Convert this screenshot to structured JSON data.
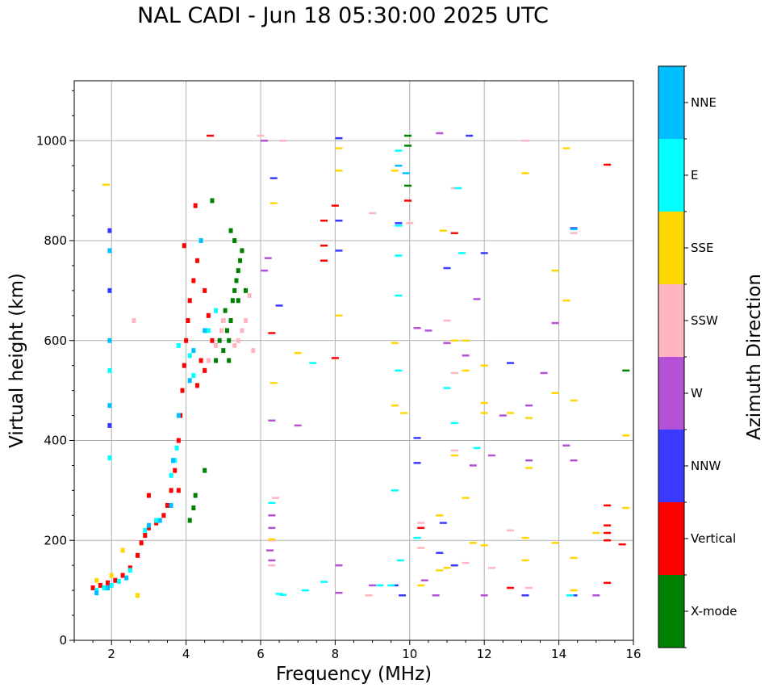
{
  "chart_data": {
    "type": "scatter",
    "title": "NAL CADI - Jun 18 05:30:00 2025 UTC",
    "xlabel": "Frequency (MHz)",
    "ylabel": "Virtual height (km)",
    "xlim": [
      1,
      16
    ],
    "ylim": [
      0,
      1120
    ],
    "xticks": [
      2,
      4,
      6,
      8,
      10,
      12,
      14,
      16
    ],
    "yticks": [
      0,
      200,
      400,
      600,
      800,
      1000
    ],
    "grid": true,
    "colorbar": {
      "label": "Azimuth Direction",
      "categories": [
        "X-mode",
        "Vertical",
        "NNW",
        "W",
        "SSW",
        "SSE",
        "E",
        "NNE"
      ],
      "colors": [
        "#008000",
        "#ff0000",
        "#3a3aff",
        "#b452d6",
        "#ffb6c1",
        "#ffd700",
        "#00ffff",
        "#00bfff"
      ]
    },
    "series": [
      {
        "name": "X-mode",
        "points": [
          [
            4.1,
            240
          ],
          [
            4.2,
            265
          ],
          [
            4.25,
            290
          ],
          [
            4.5,
            340
          ],
          [
            4.8,
            560
          ],
          [
            4.9,
            600
          ],
          [
            5.0,
            640
          ],
          [
            5.05,
            660
          ],
          [
            5.1,
            620
          ],
          [
            5.15,
            600
          ],
          [
            5.2,
            640
          ],
          [
            5.25,
            680
          ],
          [
            5.3,
            700
          ],
          [
            5.35,
            720
          ],
          [
            5.4,
            740
          ],
          [
            5.45,
            760
          ],
          [
            5.5,
            780
          ],
          [
            5.3,
            800
          ],
          [
            5.2,
            820
          ],
          [
            4.7,
            880
          ],
          [
            5.6,
            700
          ],
          [
            5.0,
            580
          ],
          [
            5.15,
            560
          ],
          [
            5.4,
            680
          ],
          [
            15.8,
            540
          ],
          [
            9.95,
            1010
          ],
          [
            9.95,
            990
          ],
          [
            9.95,
            910
          ]
        ]
      },
      {
        "name": "Vertical",
        "points": [
          [
            1.5,
            105
          ],
          [
            1.7,
            110
          ],
          [
            1.9,
            115
          ],
          [
            2.1,
            120
          ],
          [
            2.3,
            130
          ],
          [
            2.5,
            145
          ],
          [
            2.7,
            170
          ],
          [
            2.8,
            195
          ],
          [
            2.9,
            210
          ],
          [
            3.0,
            225
          ],
          [
            3.2,
            235
          ],
          [
            3.4,
            250
          ],
          [
            3.5,
            270
          ],
          [
            3.6,
            300
          ],
          [
            3.7,
            340
          ],
          [
            3.8,
            400
          ],
          [
            3.85,
            450
          ],
          [
            3.9,
            500
          ],
          [
            3.95,
            550
          ],
          [
            4.0,
            600
          ],
          [
            4.05,
            640
          ],
          [
            4.1,
            680
          ],
          [
            4.2,
            720
          ],
          [
            4.3,
            760
          ],
          [
            4.5,
            700
          ],
          [
            4.6,
            650
          ],
          [
            4.7,
            600
          ],
          [
            4.5,
            540
          ],
          [
            4.3,
            510
          ],
          [
            3.95,
            790
          ],
          [
            4.25,
            870
          ],
          [
            4.65,
            1010
          ],
          [
            4.4,
            560
          ],
          [
            7.7,
            790
          ],
          [
            7.7,
            760
          ],
          [
            7.7,
            840
          ],
          [
            8.0,
            870
          ],
          [
            6.3,
            615
          ],
          [
            8.0,
            565
          ],
          [
            15.3,
            270
          ],
          [
            15.3,
            230
          ],
          [
            15.3,
            215
          ],
          [
            15.3,
            200
          ],
          [
            15.7,
            192
          ],
          [
            15.3,
            115
          ],
          [
            15.3,
            952
          ],
          [
            12.7,
            105
          ],
          [
            3.0,
            290
          ],
          [
            3.8,
            300
          ],
          [
            11.2,
            815
          ],
          [
            10.3,
            225
          ],
          [
            9.95,
            880
          ]
        ]
      },
      {
        "name": "NNW",
        "points": [
          [
            1.95,
            820
          ],
          [
            1.95,
            700
          ],
          [
            1.95,
            430
          ],
          [
            6.35,
            925
          ],
          [
            6.5,
            670
          ],
          [
            8.1,
            1005
          ],
          [
            8.1,
            840
          ],
          [
            8.1,
            780
          ],
          [
            9.7,
            835
          ],
          [
            10.2,
            405
          ],
          [
            10.2,
            355
          ],
          [
            11.0,
            745
          ],
          [
            11.6,
            1010
          ],
          [
            12.0,
            775
          ],
          [
            12.7,
            555
          ],
          [
            13.1,
            90
          ],
          [
            14.4,
            825
          ],
          [
            14.4,
            90
          ],
          [
            10.8,
            175
          ],
          [
            11.2,
            150
          ],
          [
            9.8,
            90
          ],
          [
            9.6,
            110
          ],
          [
            10.9,
            235
          ]
        ]
      },
      {
        "name": "W",
        "points": [
          [
            6.1,
            1000
          ],
          [
            6.2,
            765
          ],
          [
            6.1,
            740
          ],
          [
            6.3,
            440
          ],
          [
            6.3,
            250
          ],
          [
            6.3,
            225
          ],
          [
            6.25,
            180
          ],
          [
            6.3,
            160
          ],
          [
            7.0,
            430
          ],
          [
            8.1,
            150
          ],
          [
            8.1,
            95
          ],
          [
            9.0,
            110
          ],
          [
            10.8,
            1015
          ],
          [
            10.2,
            625
          ],
          [
            10.5,
            620
          ],
          [
            11.0,
            595
          ],
          [
            11.5,
            570
          ],
          [
            11.7,
            350
          ],
          [
            12.2,
            370
          ],
          [
            12.5,
            450
          ],
          [
            13.2,
            470
          ],
          [
            13.2,
            360
          ],
          [
            13.6,
            535
          ],
          [
            13.9,
            635
          ],
          [
            14.2,
            390
          ],
          [
            14.4,
            360
          ],
          [
            15.0,
            90
          ],
          [
            12.0,
            90
          ],
          [
            10.7,
            90
          ],
          [
            10.4,
            120
          ],
          [
            11.8,
            683
          ]
        ]
      },
      {
        "name": "SSW",
        "points": [
          [
            5.8,
            580
          ],
          [
            5.6,
            640
          ],
          [
            5.5,
            620
          ],
          [
            5.4,
            600
          ],
          [
            5.3,
            590
          ],
          [
            4.6,
            560
          ],
          [
            4.8,
            590
          ],
          [
            5.7,
            690
          ],
          [
            6.0,
            1010
          ],
          [
            6.6,
            1000
          ],
          [
            6.4,
            285
          ],
          [
            6.3,
            200
          ],
          [
            6.3,
            150
          ],
          [
            9.0,
            855
          ],
          [
            8.9,
            90
          ],
          [
            10.0,
            835
          ],
          [
            10.3,
            235
          ],
          [
            10.3,
            185
          ],
          [
            11.0,
            640
          ],
          [
            11.2,
            905
          ],
          [
            11.2,
            535
          ],
          [
            11.2,
            380
          ],
          [
            11.5,
            155
          ],
          [
            12.7,
            220
          ],
          [
            12.2,
            145
          ],
          [
            13.1,
            1000
          ],
          [
            13.2,
            105
          ],
          [
            14.4,
            815
          ],
          [
            5.0,
            640
          ],
          [
            4.95,
            620
          ],
          [
            2.6,
            640
          ]
        ]
      },
      {
        "name": "SSE",
        "points": [
          [
            1.6,
            120
          ],
          [
            1.85,
            912
          ],
          [
            2.0,
            130
          ],
          [
            2.3,
            180
          ],
          [
            6.35,
            875
          ],
          [
            6.35,
            515
          ],
          [
            6.3,
            202
          ],
          [
            7.0,
            575
          ],
          [
            8.1,
            985
          ],
          [
            8.1,
            940
          ],
          [
            8.1,
            650
          ],
          [
            9.6,
            940
          ],
          [
            9.6,
            595
          ],
          [
            9.6,
            470
          ],
          [
            9.85,
            455
          ],
          [
            10.3,
            110
          ],
          [
            10.9,
            820
          ],
          [
            11.2,
            600
          ],
          [
            11.2,
            370
          ],
          [
            11.5,
            600
          ],
          [
            11.5,
            540
          ],
          [
            11.5,
            285
          ],
          [
            10.8,
            250
          ],
          [
            10.8,
            140
          ],
          [
            11.0,
            145
          ],
          [
            11.7,
            195
          ],
          [
            12.0,
            550
          ],
          [
            12.0,
            475
          ],
          [
            12.0,
            455
          ],
          [
            12.0,
            190
          ],
          [
            12.7,
            455
          ],
          [
            13.1,
            935
          ],
          [
            13.2,
            445
          ],
          [
            13.2,
            345
          ],
          [
            13.1,
            205
          ],
          [
            13.1,
            160
          ],
          [
            13.9,
            740
          ],
          [
            13.9,
            495
          ],
          [
            13.9,
            195
          ],
          [
            14.2,
            985
          ],
          [
            14.2,
            680
          ],
          [
            14.4,
            480
          ],
          [
            14.4,
            165
          ],
          [
            14.4,
            100
          ],
          [
            15.0,
            215
          ],
          [
            15.8,
            410
          ],
          [
            15.8,
            265
          ],
          [
            2.7,
            90
          ]
        ]
      },
      {
        "name": "E",
        "points": [
          [
            1.6,
            100
          ],
          [
            1.8,
            105
          ],
          [
            2.0,
            110
          ],
          [
            2.2,
            118
          ],
          [
            2.5,
            140
          ],
          [
            2.9,
            220
          ],
          [
            3.2,
            240
          ],
          [
            3.6,
            330
          ],
          [
            3.7,
            360
          ],
          [
            3.75,
            385
          ],
          [
            3.8,
            590
          ],
          [
            4.1,
            570
          ],
          [
            4.2,
            530
          ],
          [
            4.6,
            620
          ],
          [
            4.8,
            660
          ],
          [
            1.95,
            540
          ],
          [
            1.95,
            365
          ],
          [
            6.5,
            93
          ],
          [
            6.3,
            275
          ],
          [
            6.6,
            91
          ],
          [
            7.2,
            100
          ],
          [
            7.4,
            555
          ],
          [
            7.7,
            117
          ],
          [
            9.2,
            110
          ],
          [
            9.5,
            110
          ],
          [
            9.6,
            300
          ],
          [
            9.7,
            830
          ],
          [
            9.7,
            770
          ],
          [
            9.7,
            690
          ],
          [
            9.7,
            540
          ],
          [
            9.7,
            980
          ],
          [
            9.75,
            160
          ],
          [
            10.2,
            205
          ],
          [
            11.2,
            435
          ],
          [
            11.3,
            905
          ],
          [
            11.4,
            775
          ],
          [
            11.8,
            385
          ],
          [
            11.0,
            505
          ],
          [
            14.3,
            90
          ]
        ]
      },
      {
        "name": "NNE",
        "points": [
          [
            1.6,
            95
          ],
          [
            1.9,
            105
          ],
          [
            2.4,
            125
          ],
          [
            3.0,
            230
          ],
          [
            3.3,
            240
          ],
          [
            3.6,
            270
          ],
          [
            3.65,
            360
          ],
          [
            3.8,
            450
          ],
          [
            4.1,
            520
          ],
          [
            4.2,
            580
          ],
          [
            4.4,
            800
          ],
          [
            4.5,
            620
          ],
          [
            1.95,
            780
          ],
          [
            1.95,
            600
          ],
          [
            1.95,
            470
          ],
          [
            9.7,
            950
          ],
          [
            9.9,
            935
          ],
          [
            14.4,
            823
          ]
        ]
      }
    ]
  }
}
